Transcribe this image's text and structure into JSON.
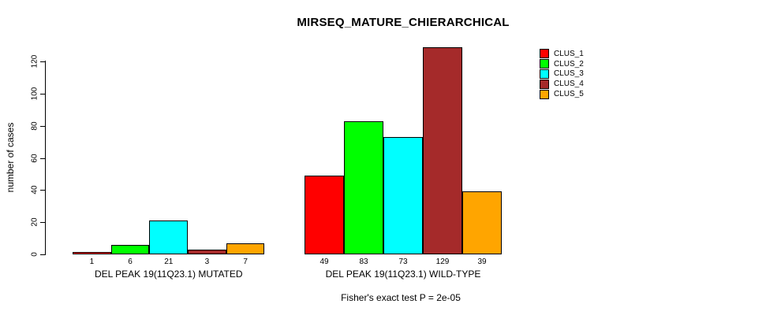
{
  "page": {
    "background": "#ffffff"
  },
  "chart_data": {
    "type": "bar",
    "title": "MIRSEQ_MATURE_CHIERARCHICAL",
    "ylabel": "number of cases",
    "xlabel": "",
    "yticks": [
      0,
      20,
      40,
      60,
      80,
      100,
      120
    ],
    "ylim": [
      0,
      130
    ],
    "grid": false,
    "legend_position": "top-right",
    "categories": [
      "DEL PEAK 19(11Q23.1) MUTATED",
      "DEL PEAK 19(11Q23.1) WILD-TYPE"
    ],
    "series": [
      {
        "name": "CLUS_1",
        "color": "#FF0000",
        "values": [
          1,
          49
        ]
      },
      {
        "name": "CLUS_2",
        "color": "#00FF00",
        "values": [
          6,
          83
        ]
      },
      {
        "name": "CLUS_3",
        "color": "#00FFFF",
        "values": [
          21,
          73
        ]
      },
      {
        "name": "CLUS_4",
        "color": "#A52A2A",
        "values": [
          3,
          129
        ]
      },
      {
        "name": "CLUS_5",
        "color": "#FFA500",
        "values": [
          7,
          39
        ]
      }
    ],
    "bar_value_labels": [
      [
        1,
        6,
        21,
        3,
        7
      ],
      [
        49,
        83,
        73,
        129,
        39
      ]
    ],
    "footer": "Fisher's exact test P = 2e-05",
    "bar_border_color": "#000000",
    "axis_color": "#000000"
  }
}
